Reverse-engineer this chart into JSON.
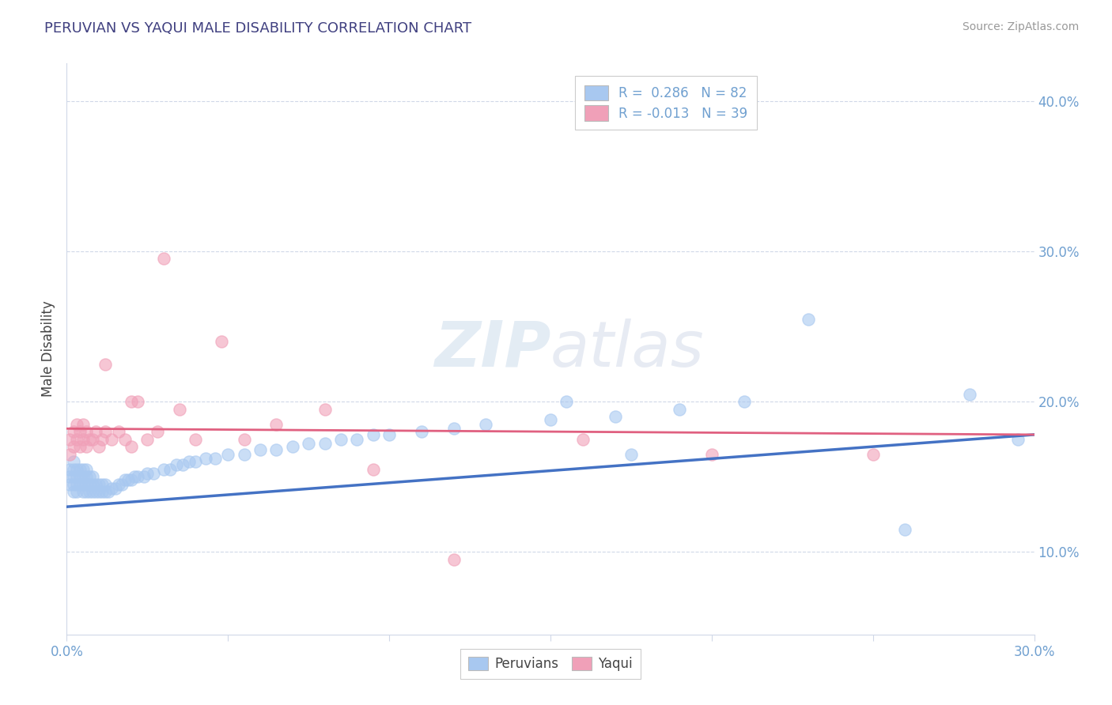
{
  "title": "PERUVIAN VS YAQUI MALE DISABILITY CORRELATION CHART",
  "source": "Source: ZipAtlas.com",
  "ylabel": "Male Disability",
  "xlim": [
    0.0,
    0.3
  ],
  "ylim": [
    0.045,
    0.425
  ],
  "x_ticks": [
    0.0,
    0.05,
    0.1,
    0.15,
    0.2,
    0.25,
    0.3
  ],
  "y_ticks_right": [
    0.1,
    0.2,
    0.3,
    0.4
  ],
  "y_tick_labels_right": [
    "10.0%",
    "20.0%",
    "30.0%",
    "40.0%"
  ],
  "legend_r1": "R =  0.286   N = 82",
  "legend_r2": "R = -0.013   N = 39",
  "blue_color": "#A8C8F0",
  "pink_color": "#F0A0B8",
  "blue_line_color": "#4472C4",
  "pink_line_color": "#E06080",
  "title_color": "#404080",
  "axis_label_color": "#5080C0",
  "tick_color": "#70A0D0",
  "grid_color": "#D0D8E8",
  "blue_trend_x0": 0.0,
  "blue_trend_y0": 0.13,
  "blue_trend_x1": 0.3,
  "blue_trend_y1": 0.178,
  "pink_trend_x0": 0.0,
  "pink_trend_y0": 0.182,
  "pink_trend_x1": 0.3,
  "pink_trend_y1": 0.178,
  "peruvians_x": [
    0.001,
    0.001,
    0.001,
    0.002,
    0.002,
    0.002,
    0.002,
    0.002,
    0.003,
    0.003,
    0.003,
    0.003,
    0.004,
    0.004,
    0.004,
    0.005,
    0.005,
    0.005,
    0.005,
    0.006,
    0.006,
    0.006,
    0.006,
    0.007,
    0.007,
    0.007,
    0.008,
    0.008,
    0.008,
    0.009,
    0.009,
    0.01,
    0.01,
    0.011,
    0.011,
    0.012,
    0.012,
    0.013,
    0.014,
    0.015,
    0.016,
    0.017,
    0.018,
    0.019,
    0.02,
    0.021,
    0.022,
    0.024,
    0.025,
    0.027,
    0.03,
    0.032,
    0.034,
    0.036,
    0.038,
    0.04,
    0.043,
    0.046,
    0.05,
    0.055,
    0.06,
    0.065,
    0.07,
    0.075,
    0.08,
    0.085,
    0.09,
    0.095,
    0.1,
    0.11,
    0.12,
    0.13,
    0.15,
    0.17,
    0.19,
    0.21,
    0.23,
    0.26,
    0.28,
    0.295,
    0.155,
    0.175
  ],
  "peruvians_y": [
    0.145,
    0.15,
    0.155,
    0.14,
    0.145,
    0.15,
    0.155,
    0.16,
    0.14,
    0.145,
    0.15,
    0.155,
    0.145,
    0.15,
    0.155,
    0.14,
    0.145,
    0.15,
    0.155,
    0.14,
    0.145,
    0.15,
    0.155,
    0.14,
    0.145,
    0.15,
    0.14,
    0.145,
    0.15,
    0.14,
    0.145,
    0.14,
    0.145,
    0.14,
    0.145,
    0.14,
    0.145,
    0.14,
    0.142,
    0.142,
    0.145,
    0.145,
    0.148,
    0.148,
    0.148,
    0.15,
    0.15,
    0.15,
    0.152,
    0.152,
    0.155,
    0.155,
    0.158,
    0.158,
    0.16,
    0.16,
    0.162,
    0.162,
    0.165,
    0.165,
    0.168,
    0.168,
    0.17,
    0.172,
    0.172,
    0.175,
    0.175,
    0.178,
    0.178,
    0.18,
    0.182,
    0.185,
    0.188,
    0.19,
    0.195,
    0.2,
    0.255,
    0.115,
    0.205,
    0.175,
    0.2,
    0.165
  ],
  "yaqui_x": [
    0.001,
    0.001,
    0.002,
    0.002,
    0.003,
    0.003,
    0.004,
    0.004,
    0.005,
    0.005,
    0.006,
    0.006,
    0.007,
    0.008,
    0.009,
    0.01,
    0.011,
    0.012,
    0.014,
    0.016,
    0.018,
    0.02,
    0.022,
    0.025,
    0.028,
    0.03,
    0.035,
    0.04,
    0.048,
    0.055,
    0.065,
    0.08,
    0.095,
    0.12,
    0.16,
    0.2,
    0.25,
    0.02,
    0.012
  ],
  "yaqui_y": [
    0.165,
    0.175,
    0.17,
    0.18,
    0.175,
    0.185,
    0.17,
    0.18,
    0.175,
    0.185,
    0.17,
    0.18,
    0.175,
    0.175,
    0.18,
    0.17,
    0.175,
    0.18,
    0.175,
    0.18,
    0.175,
    0.17,
    0.2,
    0.175,
    0.18,
    0.295,
    0.195,
    0.175,
    0.24,
    0.175,
    0.185,
    0.195,
    0.155,
    0.095,
    0.175,
    0.165,
    0.165,
    0.2,
    0.225
  ]
}
